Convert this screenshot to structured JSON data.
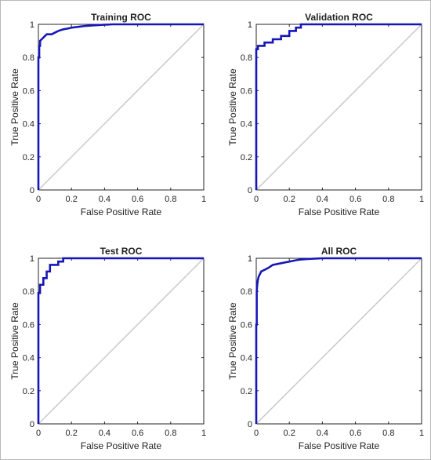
{
  "colors": {
    "roc_line": "#1616b8",
    "diagonal": "#c8c8c8",
    "axis": "#262626",
    "text": "#222222",
    "background": "#ffffff"
  },
  "chart_data": [
    {
      "type": "line",
      "title": "Training ROC",
      "xlabel": "False Positive Rate",
      "ylabel": "True Positive Rate",
      "xlim": [
        0,
        1
      ],
      "ylim": [
        0,
        1
      ],
      "xticks": [
        "0",
        "0.2",
        "0.4",
        "0.6",
        "0.8",
        "1"
      ],
      "yticks": [
        "0",
        "0.2",
        "0.4",
        "0.6",
        "0.8",
        "1"
      ],
      "grid": false,
      "series": [
        {
          "x": [
            0,
            0,
            0.005,
            0.005,
            0.01,
            0.01,
            0.02,
            0.03,
            0.04,
            0.05,
            0.08,
            0.1,
            0.12,
            0.15,
            0.18,
            0.2,
            0.24,
            0.28,
            0.35,
            0.45,
            1
          ],
          "y": [
            0,
            0.8,
            0.8,
            0.87,
            0.87,
            0.9,
            0.91,
            0.92,
            0.93,
            0.94,
            0.94,
            0.95,
            0.96,
            0.97,
            0.975,
            0.98,
            0.985,
            0.99,
            0.995,
            1,
            1
          ]
        }
      ],
      "diagonal": {
        "x": [
          0,
          1
        ],
        "y": [
          0,
          1
        ]
      }
    },
    {
      "type": "line",
      "title": "Validation ROC",
      "xlabel": "False Positive Rate",
      "ylabel": "True Positive Rate",
      "xlim": [
        0,
        1
      ],
      "ylim": [
        0,
        1
      ],
      "xticks": [
        "0",
        "0.2",
        "0.4",
        "0.6",
        "0.8",
        "1"
      ],
      "yticks": [
        "0",
        "0.2",
        "0.4",
        "0.6",
        "0.8",
        "1"
      ],
      "grid": false,
      "series": [
        {
          "x": [
            0,
            0,
            0.01,
            0.01,
            0.05,
            0.05,
            0.1,
            0.1,
            0.15,
            0.15,
            0.2,
            0.2,
            0.24,
            0.24,
            0.27,
            0.27,
            1
          ],
          "y": [
            0,
            0.85,
            0.85,
            0.87,
            0.87,
            0.89,
            0.89,
            0.91,
            0.91,
            0.93,
            0.93,
            0.96,
            0.96,
            0.98,
            0.98,
            1,
            1
          ]
        }
      ],
      "diagonal": {
        "x": [
          0,
          1
        ],
        "y": [
          0,
          1
        ]
      }
    },
    {
      "type": "line",
      "title": "Test ROC",
      "xlabel": "False Positive Rate",
      "ylabel": "True Positive Rate",
      "xlim": [
        0,
        1
      ],
      "ylim": [
        0,
        1
      ],
      "xticks": [
        "0",
        "0.2",
        "0.4",
        "0.6",
        "0.8",
        "1"
      ],
      "yticks": [
        "0",
        "0.2",
        "0.4",
        "0.6",
        "0.8",
        "1"
      ],
      "grid": false,
      "series": [
        {
          "x": [
            0,
            0,
            0.01,
            0.01,
            0.03,
            0.03,
            0.05,
            0.05,
            0.07,
            0.07,
            0.12,
            0.12,
            0.15,
            0.15,
            1
          ],
          "y": [
            0,
            0.79,
            0.79,
            0.84,
            0.84,
            0.88,
            0.88,
            0.92,
            0.92,
            0.96,
            0.96,
            0.98,
            0.98,
            1,
            1
          ]
        }
      ],
      "diagonal": {
        "x": [
          0,
          1
        ],
        "y": [
          0,
          1
        ]
      }
    },
    {
      "type": "line",
      "title": "All ROC",
      "xlabel": "False Positive Rate",
      "ylabel": "True Positive Rate",
      "xlim": [
        0,
        1
      ],
      "ylim": [
        0,
        1
      ],
      "xticks": [
        "0",
        "0.2",
        "0.4",
        "0.6",
        "0.8",
        "1"
      ],
      "yticks": [
        "0",
        "0.2",
        "0.4",
        "0.6",
        "0.8",
        "1"
      ],
      "grid": false,
      "series": [
        {
          "x": [
            0,
            0,
            0.003,
            0.003,
            0.006,
            0.01,
            0.015,
            0.02,
            0.03,
            0.05,
            0.07,
            0.1,
            0.15,
            0.2,
            0.25,
            0.3,
            0.4,
            1
          ],
          "y": [
            0,
            0.6,
            0.6,
            0.8,
            0.84,
            0.87,
            0.89,
            0.9,
            0.92,
            0.93,
            0.94,
            0.96,
            0.97,
            0.98,
            0.99,
            0.995,
            1,
            1
          ]
        }
      ],
      "diagonal": {
        "x": [
          0,
          1
        ],
        "y": [
          0,
          1
        ]
      }
    }
  ]
}
